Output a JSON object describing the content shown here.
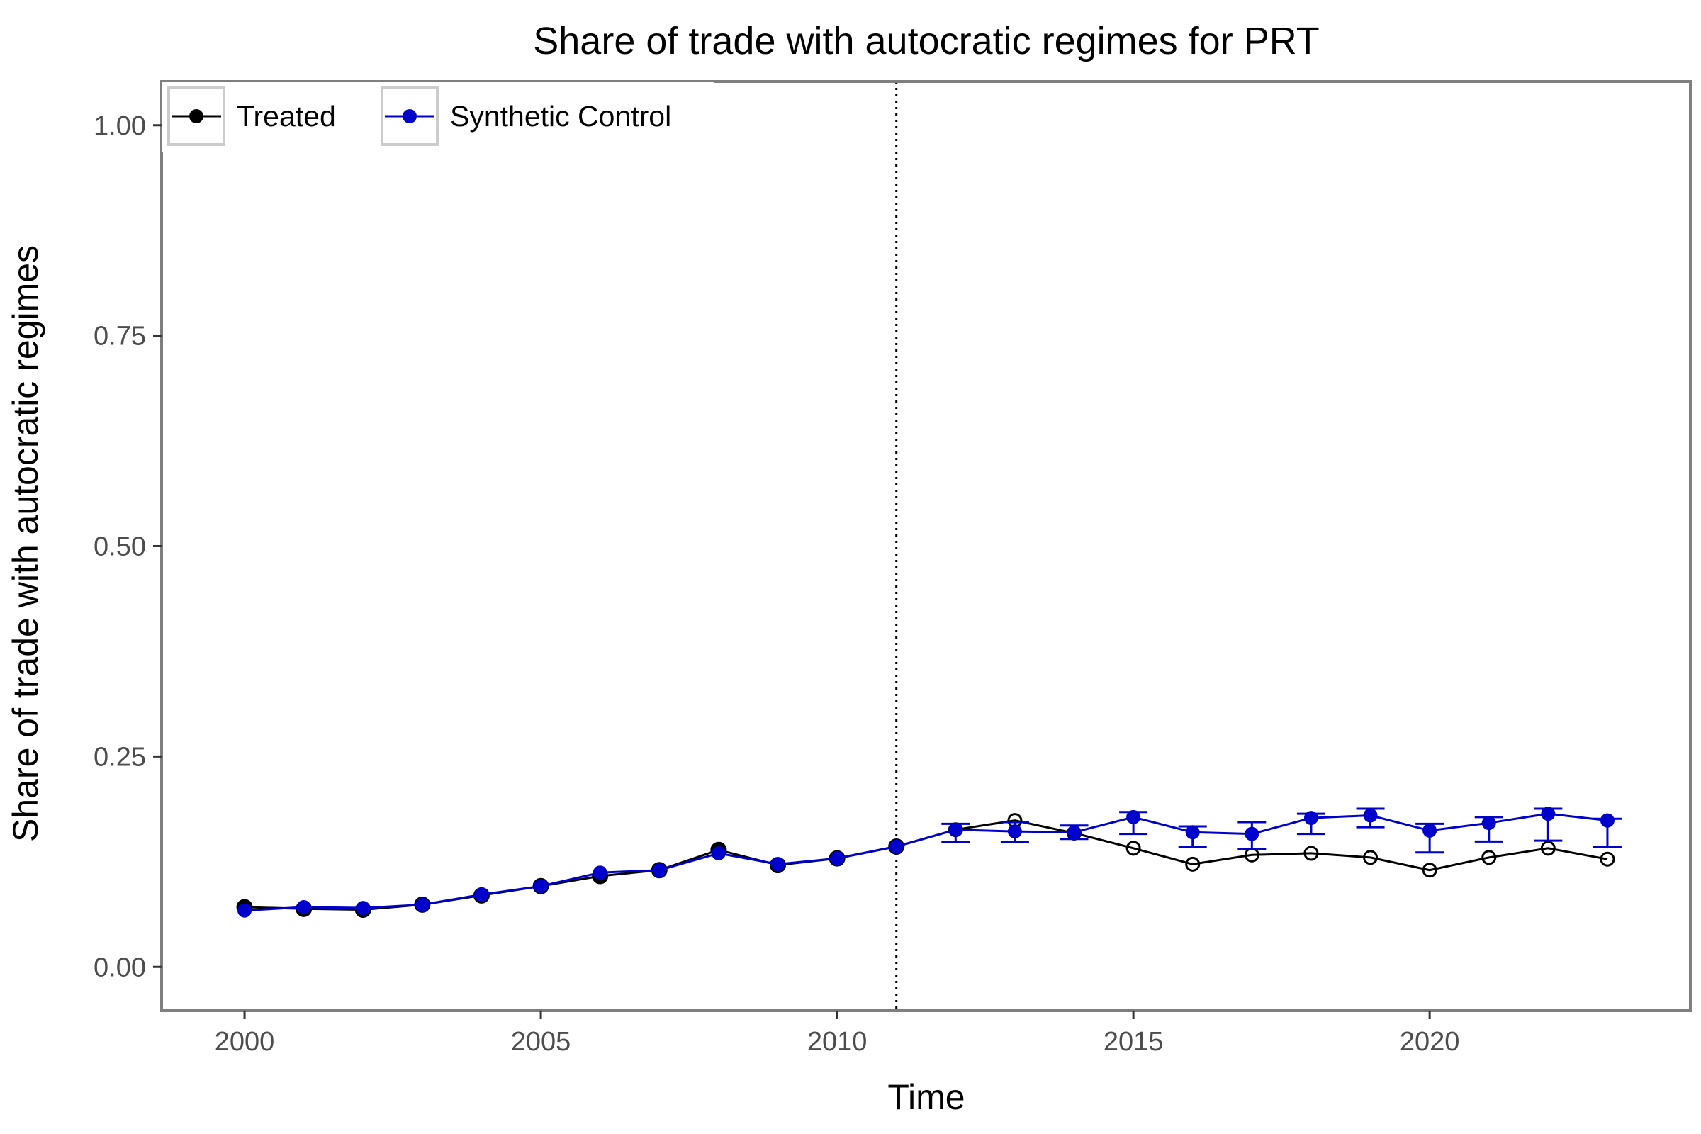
{
  "chart_data": {
    "type": "line",
    "title": "Share of trade with autocratic regimes for PRT",
    "xlabel": "Time",
    "ylabel": "Share of trade with autocratic regimes",
    "xlim": [
      1998.6,
      2024.4
    ],
    "ylim": [
      -0.052,
      1.052
    ],
    "x_ticks": [
      2000,
      2005,
      2010,
      2015,
      2020
    ],
    "y_ticks": [
      0.0,
      0.25,
      0.5,
      0.75,
      1.0
    ],
    "y_tick_labels": [
      "0.00",
      "0.25",
      "0.50",
      "0.75",
      "1.00"
    ],
    "grid": false,
    "legend_position": "top-left",
    "treatment_year": 2011,
    "x": [
      2000,
      2001,
      2002,
      2003,
      2004,
      2005,
      2006,
      2007,
      2008,
      2009,
      2010,
      2011,
      2012,
      2013,
      2014,
      2015,
      2016,
      2017,
      2018,
      2019,
      2020,
      2021,
      2022,
      2023
    ],
    "series": [
      {
        "name": "Treated",
        "color": "#000000",
        "values": [
          0.071,
          0.069,
          0.068,
          0.074,
          0.085,
          0.096,
          0.108,
          0.115,
          0.139,
          0.121,
          0.129,
          0.143,
          0.163,
          0.174,
          0.159,
          0.141,
          0.122,
          0.133,
          0.135,
          0.13,
          0.115,
          0.13,
          0.141,
          0.128
        ]
      },
      {
        "name": "Synthetic Control",
        "color": "#0000cc",
        "values": [
          0.067,
          0.071,
          0.07,
          0.074,
          0.086,
          0.096,
          0.112,
          0.115,
          0.135,
          0.122,
          0.129,
          0.143,
          0.163,
          0.161,
          0.16,
          0.178,
          0.16,
          0.158,
          0.177,
          0.18,
          0.162,
          0.171,
          0.182,
          0.174
        ],
        "error_bars": [
          {
            "x": 2012,
            "low": 0.148,
            "high": 0.17
          },
          {
            "x": 2013,
            "low": 0.148,
            "high": 0.172
          },
          {
            "x": 2014,
            "low": 0.152,
            "high": 0.168
          },
          {
            "x": 2015,
            "low": 0.158,
            "high": 0.184
          },
          {
            "x": 2016,
            "low": 0.143,
            "high": 0.167
          },
          {
            "x": 2017,
            "low": 0.14,
            "high": 0.172
          },
          {
            "x": 2018,
            "low": 0.158,
            "high": 0.182
          },
          {
            "x": 2019,
            "low": 0.166,
            "high": 0.188
          },
          {
            "x": 2020,
            "low": 0.136,
            "high": 0.17
          },
          {
            "x": 2021,
            "low": 0.149,
            "high": 0.178
          },
          {
            "x": 2022,
            "low": 0.15,
            "high": 0.188
          },
          {
            "x": 2023,
            "low": 0.143,
            "high": 0.176
          }
        ]
      }
    ]
  }
}
